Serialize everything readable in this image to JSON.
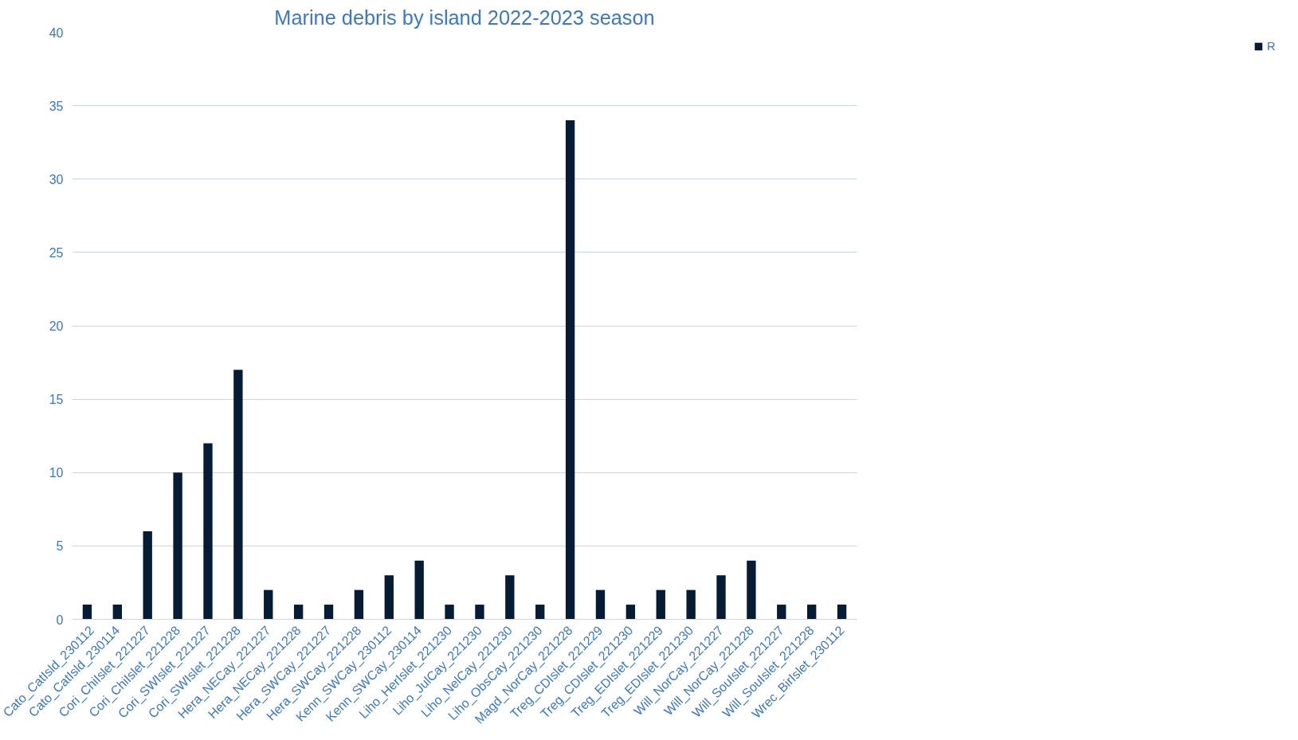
{
  "chart_data": {
    "type": "bar",
    "title": "Marine debris by island 2022-2023 season",
    "categories": [
      "Cato_CatIsld_230112",
      "Cato_CatIsld_230114",
      "Cori_ChiIslet_221227",
      "Cori_ChiIslet_221228",
      "Cori_SWIslet_221227",
      "Cori_SWIslet_221228",
      "Hera_NECay_221227",
      "Hera_NECay_221228",
      "Hera_SWCay_221227",
      "Hera_SWCay_221228",
      "Kenn_SWCay_230112",
      "Kenn_SWCay_230114",
      "Liho_HerIslet_221230",
      "Liho_JulCay_221230",
      "Liho_NelCay_221230",
      "Liho_ObsCay_221230",
      "Magd_NorCay_221228",
      "Treg_CDIslet_221229",
      "Treg_CDIslet_221230",
      "Treg_EDIslet_221229",
      "Treg_EDIslet_221230",
      "Will_NorCay_221227",
      "Will_NorCay_221228",
      "Will_SouIslet_221227",
      "Will_SouIslet_221228",
      "Wrec_BirIslet_230112"
    ],
    "series": [
      {
        "name": "R",
        "color": "#061c35",
        "values": [
          1,
          1,
          6,
          10,
          12,
          17,
          2,
          1,
          1,
          2,
          3,
          4,
          1,
          1,
          3,
          1,
          34,
          2,
          1,
          2,
          2,
          3,
          4,
          1,
          1,
          1
        ]
      }
    ],
    "ylim": [
      0,
      40
    ],
    "yticks": [
      0,
      5,
      10,
      15,
      20,
      25,
      30,
      35,
      40
    ],
    "grid": "y",
    "legend": "right"
  }
}
